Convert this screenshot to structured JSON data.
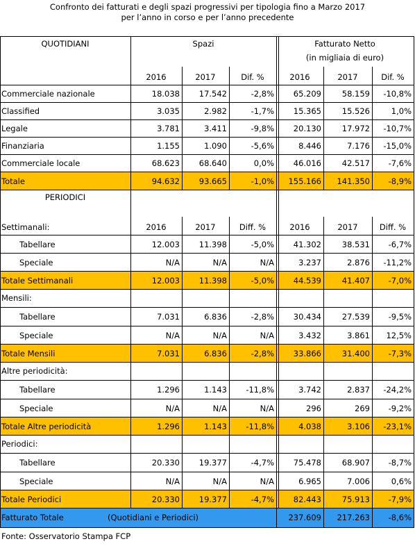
{
  "title": [
    "Confronto dei fatturati e degli spazi progressivi per tipologia fino a Marzo 2017",
    "per l’anno in corso e per l’anno precedente"
  ],
  "table": {
    "total_color": "#ffc000",
    "grand_total_color": "#3399ee",
    "quotidiani": {
      "header": "QUOTIDIANI",
      "group_headers": [
        "Spazi",
        "Fatturato Netto"
      ],
      "unit": "(in migliaia di euro)",
      "columns": [
        "2016",
        "2017",
        "Dif. %",
        "2016",
        "2017",
        "Dif. %"
      ],
      "rows": [
        {
          "label": "Commerciale nazionale",
          "cells": [
            "18.038",
            "17.542",
            "-2,8%",
            "65.209",
            "58.159",
            "-10,8%"
          ]
        },
        {
          "label": "Classified",
          "cells": [
            "3.035",
            "2.982",
            "-1,7%",
            "15.365",
            "15.526",
            "1,0%"
          ]
        },
        {
          "label": "Legale",
          "cells": [
            "3.781",
            "3.411",
            "-9,8%",
            "20.130",
            "17.972",
            "-10,7%"
          ]
        },
        {
          "label": "Finanziaria",
          "cells": [
            "1.155",
            "1.090",
            "-5,6%",
            "8.446",
            "7.176",
            "-15,0%"
          ]
        },
        {
          "label": "Commerciale locale",
          "cells": [
            "68.623",
            "68.640",
            "0,0%",
            "46.016",
            "42.517",
            "-7,6%"
          ]
        }
      ],
      "total": {
        "label": "Totale",
        "cells": [
          "94.632",
          "93.665",
          "-1,0%",
          "155.166",
          "141.350",
          "-8,9%"
        ]
      }
    },
    "periodici": {
      "header": "PERIODICI",
      "groups": [
        {
          "label": "Settimanali:",
          "columns": [
            "2016",
            "2017",
            "Diff. %",
            "2016",
            "2017",
            "Diff. %"
          ],
          "rows": [
            {
              "label": "Tabellare",
              "cells": [
                "12.003",
                "11.398",
                "-5,0%",
                "41.302",
                "38.531",
                "-6,7%"
              ]
            },
            {
              "label": "Speciale",
              "cells": [
                "N/A",
                "N/A",
                "N/A",
                "3.237",
                "2.876",
                "-11,2%"
              ]
            }
          ],
          "total": {
            "label": "Totale Settimanali",
            "cells": [
              "12.003",
              "11.398",
              "-5,0%",
              "44.539",
              "41.407",
              "-7,0%"
            ]
          }
        },
        {
          "label": "Mensili:",
          "rows": [
            {
              "label": "Tabellare",
              "cells": [
                "7.031",
                "6.836",
                "-2,8%",
                "30.434",
                "27.539",
                "-9,5%"
              ]
            },
            {
              "label": "Speciale",
              "cells": [
                "N/A",
                "N/A",
                "N/A",
                "3.432",
                "3.861",
                "12,5%"
              ]
            }
          ],
          "total": {
            "label": "Totale Mensili",
            "cells": [
              "7.031",
              "6.836",
              "-2,8%",
              "33.866",
              "31.400",
              "-7,3%"
            ]
          }
        },
        {
          "label": "Altre periodicità:",
          "rows": [
            {
              "label": "Tabellare",
              "cells": [
                "1.296",
                "1.143",
                "-11,8%",
                "3.742",
                "2.837",
                "-24,2%"
              ]
            },
            {
              "label": "Speciale",
              "cells": [
                "N/A",
                "N/A",
                "N/A",
                "296",
                "269",
                "-9,2%"
              ]
            }
          ],
          "total": {
            "label": "Totale Altre periodicità",
            "cells": [
              "1.296",
              "1.143",
              "-11,8%",
              "4.038",
              "3.106",
              "-23,1%"
            ]
          }
        },
        {
          "label": "Periodici:",
          "rows": [
            {
              "label": "Tabellare",
              "cells": [
                "20.330",
                "19.377",
                "-4,7%",
                "75.478",
                "68.907",
                "-8,7%"
              ]
            },
            {
              "label": "Speciale",
              "cells": [
                "N/A",
                "N/A",
                "N/A",
                "6.965",
                "7.006",
                "0,6%"
              ]
            }
          ],
          "total": {
            "label": "Totale Periodici",
            "cells": [
              "20.330",
              "19.377",
              "-4,7%",
              "82.443",
              "75.913",
              "-7,9%"
            ]
          }
        }
      ]
    },
    "grand_total": {
      "label": "Fatturato Totale",
      "note": "(Quotidiani e Periodici)",
      "cells": [
        "237.609",
        "217.263",
        "-8,6%"
      ]
    }
  },
  "source": "Fonte: Osservatorio Stampa FCP"
}
